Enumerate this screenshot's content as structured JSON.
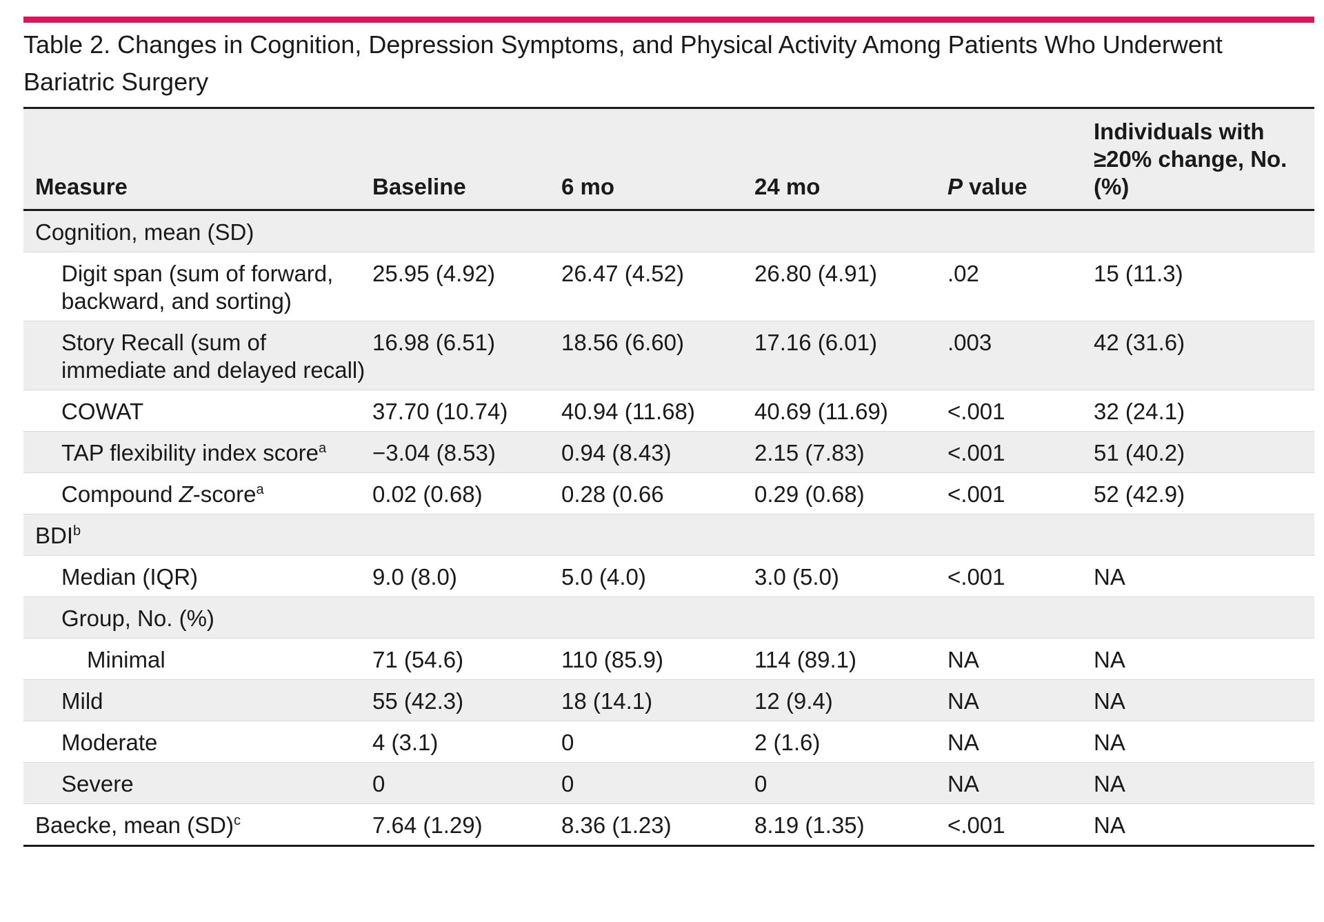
{
  "table": {
    "title": "Table 2. Changes in Cognition, Depression Symptoms, and Physical Activity Among Patients Who Underwent Bariatric Surgery",
    "columns": {
      "measure": "Measure",
      "baseline": "Baseline",
      "m6": "6 mo",
      "m24": "24 mo",
      "p_italic": "P",
      "p_rest": " value",
      "individuals": "Individuals with ≥20% change, No. (%)"
    },
    "sections": {
      "cognition": "Cognition, mean (SD)",
      "bdi": "BDI",
      "bdi_sup": "b",
      "group": "Group, No. (%)"
    },
    "rows": {
      "digit_span": {
        "measure": "Digit span (sum of forward, backward, and sorting)",
        "baseline": "25.95 (4.92)",
        "m6": "26.47 (4.52)",
        "m24": "26.80 (4.91)",
        "p": ".02",
        "change": "15 (11.3)"
      },
      "story_recall": {
        "measure": "Story Recall (sum of immediate and delayed recall)",
        "baseline": "16.98 (6.51)",
        "m6": "18.56 (6.60)",
        "m24": "17.16 (6.01)",
        "p": ".003",
        "change": "42 (31.6)"
      },
      "cowat": {
        "measure": "COWAT",
        "baseline": "37.70 (10.74)",
        "m6": "40.94 (11.68)",
        "m24": "40.69 (11.69)",
        "p": "<.001",
        "change": "32 (24.1)"
      },
      "tap": {
        "measure": "TAP flexibility index score",
        "sup": "a",
        "baseline": "−3.04 (8.53)",
        "m6": "0.94 (8.43)",
        "m24": "2.15 (7.83)",
        "p": "<.001",
        "change": "51 (40.2)"
      },
      "compound": {
        "measure_pre": "Compound ",
        "measure_italic": "Z",
        "measure_post": "-score",
        "sup": "a",
        "baseline": "0.02 (0.68)",
        "m6": "0.28 (0.66",
        "m24": "0.29 (0.68)",
        "p": "<.001",
        "change": "52 (42.9)"
      },
      "median": {
        "measure": "Median (IQR)",
        "baseline": "9.0 (8.0)",
        "m6": "5.0 (4.0)",
        "m24": "3.0 (5.0)",
        "p": "<.001",
        "change": "NA"
      },
      "minimal": {
        "measure": "Minimal",
        "baseline": "71 (54.6)",
        "m6": "110 (85.9)",
        "m24": "114 (89.1)",
        "p": "NA",
        "change": "NA"
      },
      "mild": {
        "measure": "Mild",
        "baseline": "55 (42.3)",
        "m6": "18 (14.1)",
        "m24": "12 (9.4)",
        "p": "NA",
        "change": "NA"
      },
      "moderate": {
        "measure": "Moderate",
        "baseline": "4 (3.1)",
        "m6": "0",
        "m24": "2 (1.6)",
        "p": "NA",
        "change": "NA"
      },
      "severe": {
        "measure": "Severe",
        "baseline": "0",
        "m6": "0",
        "m24": "0",
        "p": "NA",
        "change": "NA"
      },
      "baecke": {
        "measure": "Baecke, mean (SD)",
        "sup": "c",
        "baseline": "7.64 (1.29)",
        "m6": "8.36 (1.23)",
        "m24": "8.19 (1.35)",
        "p": "<.001",
        "change": "NA"
      }
    }
  },
  "colors": {
    "accent": "#d8165e",
    "shade": "#eeeeee",
    "text": "#1a1a1a",
    "rule": "#d9d9d9"
  }
}
